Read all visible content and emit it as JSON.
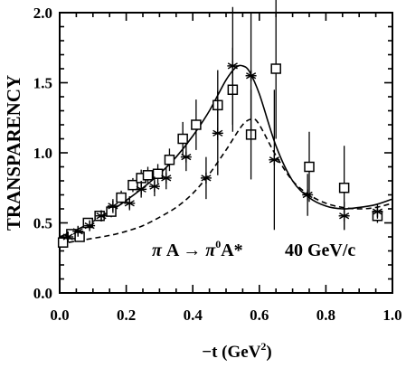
{
  "chart_data": {
    "type": "scatter",
    "title": "",
    "xlabel": "−t (GeV",
    "xlabel_sup": "2",
    "xlabel_close": ")",
    "ylabel": "TRANSPARENCY",
    "xlim": [
      0.0,
      1.0
    ],
    "ylim": [
      0.0,
      2.0
    ],
    "x_ticks": [
      "0.0",
      "0.2",
      "0.4",
      "0.6",
      "0.8",
      "1.0"
    ],
    "y_ticks": [
      "0.0",
      "0.5",
      "1.0",
      "1.5",
      "2.0"
    ],
    "grid": false,
    "annotation": {
      "pi1": "π",
      "a1": " A → ",
      "pi2": "π",
      "sup0": "0",
      "a2": "A*",
      "energy": "40 GeV/c"
    },
    "series": [
      {
        "marker": "open-square",
        "x": [
          0.01,
          0.035,
          0.06,
          0.085,
          0.12,
          0.155,
          0.185,
          0.22,
          0.245,
          0.265,
          0.295,
          0.33,
          0.37,
          0.41,
          0.475,
          0.52,
          0.575,
          0.65,
          0.75,
          0.855,
          0.955
        ],
        "y": [
          0.36,
          0.42,
          0.4,
          0.5,
          0.55,
          0.58,
          0.68,
          0.77,
          0.82,
          0.84,
          0.85,
          0.95,
          1.1,
          1.2,
          1.34,
          1.45,
          1.13,
          1.6,
          0.9,
          0.75,
          0.55
        ],
        "yerr": [
          0.03,
          0.03,
          0.03,
          0.03,
          0.03,
          0.04,
          0.05,
          0.05,
          0.06,
          0.06,
          0.07,
          0.08,
          0.12,
          0.18,
          0.25,
          0.3,
          0.32,
          0.5,
          0.25,
          0.3,
          0.05
        ]
      },
      {
        "marker": "asterisk",
        "x": [
          0.025,
          0.055,
          0.09,
          0.125,
          0.16,
          0.21,
          0.245,
          0.285,
          0.32,
          0.38,
          0.44,
          0.475,
          0.52,
          0.575,
          0.645,
          0.745,
          0.855,
          0.955
        ],
        "y": [
          0.4,
          0.44,
          0.48,
          0.55,
          0.62,
          0.64,
          0.74,
          0.76,
          0.82,
          0.97,
          0.82,
          1.14,
          1.62,
          1.55,
          0.95,
          0.7,
          0.55,
          0.58
        ],
        "yerr": [
          0.03,
          0.03,
          0.03,
          0.04,
          0.05,
          0.05,
          0.06,
          0.07,
          0.08,
          0.1,
          0.15,
          0.3,
          0.42,
          0.45,
          0.5,
          0.15,
          0.1,
          0.05
        ]
      }
    ],
    "curves": [
      {
        "style": "solid",
        "x": [
          0.0,
          0.05,
          0.1,
          0.15,
          0.2,
          0.25,
          0.3,
          0.35,
          0.4,
          0.45,
          0.5,
          0.53,
          0.55,
          0.57,
          0.6,
          0.65,
          0.7,
          0.75,
          0.8,
          0.85,
          0.9,
          0.95,
          1.0
        ],
        "y": [
          0.4,
          0.45,
          0.51,
          0.58,
          0.66,
          0.75,
          0.85,
          0.97,
          1.12,
          1.3,
          1.52,
          1.61,
          1.62,
          1.58,
          1.42,
          1.05,
          0.8,
          0.68,
          0.62,
          0.6,
          0.61,
          0.63,
          0.67
        ]
      },
      {
        "style": "dashed",
        "x": [
          0.0,
          0.05,
          0.1,
          0.15,
          0.2,
          0.25,
          0.3,
          0.35,
          0.4,
          0.45,
          0.5,
          0.55,
          0.58,
          0.6,
          0.65,
          0.7,
          0.75,
          0.8,
          0.85,
          0.9,
          0.95,
          1.0
        ],
        "y": [
          0.35,
          0.37,
          0.39,
          0.41,
          0.44,
          0.48,
          0.54,
          0.61,
          0.71,
          0.85,
          1.02,
          1.2,
          1.24,
          1.2,
          0.98,
          0.8,
          0.7,
          0.64,
          0.61,
          0.6,
          0.61,
          0.64
        ]
      }
    ]
  }
}
